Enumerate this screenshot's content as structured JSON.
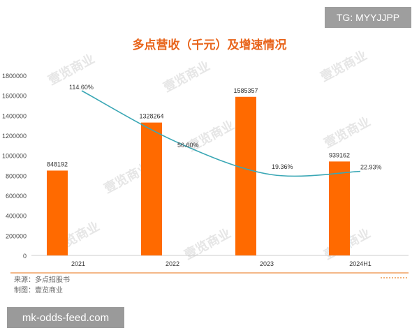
{
  "badges": {
    "top_right": "TG: MYYJJPP",
    "bottom_left": "mk-odds-feed.com"
  },
  "footer": {
    "source": "来源：多点招股书",
    "maker": "制图：壹览商业"
  },
  "watermark_text": "壹览商业",
  "colors": {
    "bar": "#ff6a00",
    "line": "#3aa7b5",
    "title": "#e8641b",
    "separator": "#f0a060"
  },
  "chart_data": {
    "type": "bar",
    "title": "多点营收（千元）及增速情况",
    "categories": [
      "2021",
      "2022",
      "2023",
      "2024H1"
    ],
    "series": [
      {
        "values": [
          848192,
          1328264,
          1585357,
          939162
        ]
      }
    ],
    "growth": {
      "values": [
        114.6,
        56.6,
        19.36,
        22.93
      ],
      "labels": [
        "114.60%",
        "56.60%",
        "19.36%",
        "22.93%"
      ]
    },
    "ylim": [
      0,
      1800000
    ],
    "yticks": [
      0,
      200000,
      400000,
      600000,
      800000,
      1000000,
      1200000,
      1400000,
      1600000,
      1800000
    ],
    "grid": false,
    "legend": "none"
  }
}
